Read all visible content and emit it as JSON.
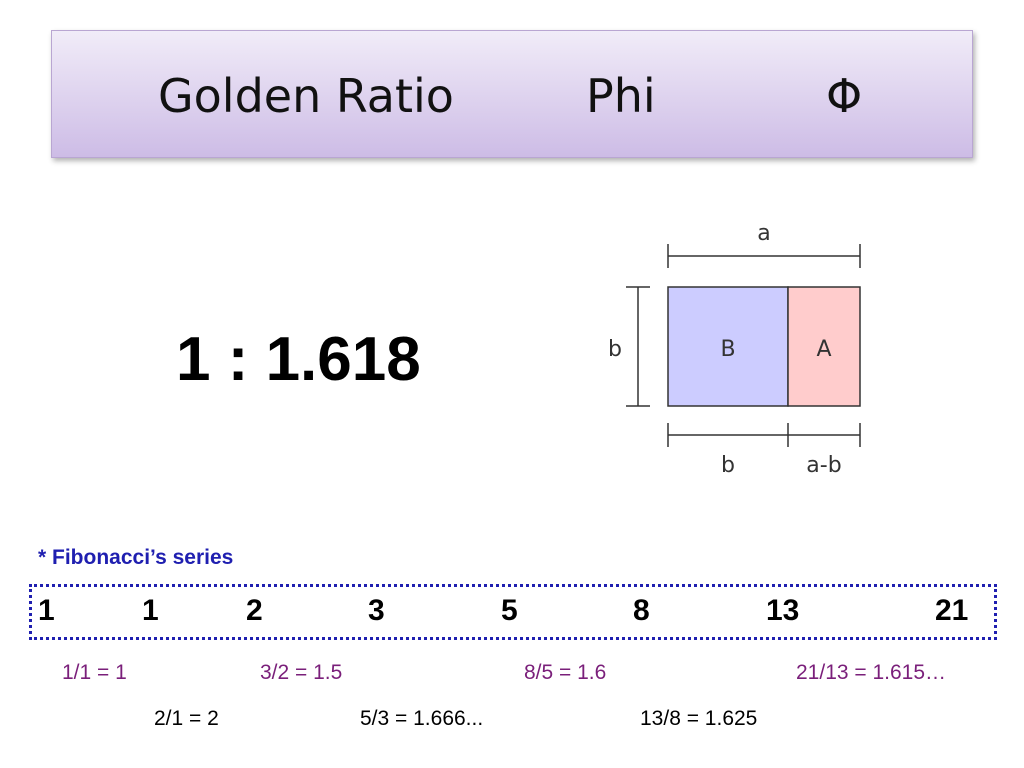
{
  "title": {
    "part1": "Golden Ratio",
    "part2": "Phi",
    "symbol": "Φ"
  },
  "ratio_text": "1 : 1.618",
  "diagram": {
    "label_a": "a",
    "label_b_side": "b",
    "label_B": "B",
    "label_A": "A",
    "label_b_bottom": "b",
    "label_a_minus_b": "a-b",
    "colors": {
      "B_fill": "#ccccff",
      "A_fill": "#ffcccc",
      "stroke": "#333333"
    }
  },
  "fibonacci": {
    "heading": "* Fibonacci’s series",
    "numbers": [
      "1",
      "1",
      "2",
      "3",
      "5",
      "8",
      "13",
      "21"
    ],
    "quotients_odd": [
      "1/1 = 1",
      "3/2 = 1.5",
      "8/5 = 1.6",
      "21/13 = 1.615…"
    ],
    "quotients_even": [
      "2/1 = 2",
      "5/3 = 1.666...",
      "13/8 = 1.625"
    ],
    "colors": {
      "heading": "#1f1fb0",
      "box_border": "#1f1fb0",
      "odd_text": "#7a1f7a",
      "even_text": "#000000"
    }
  }
}
